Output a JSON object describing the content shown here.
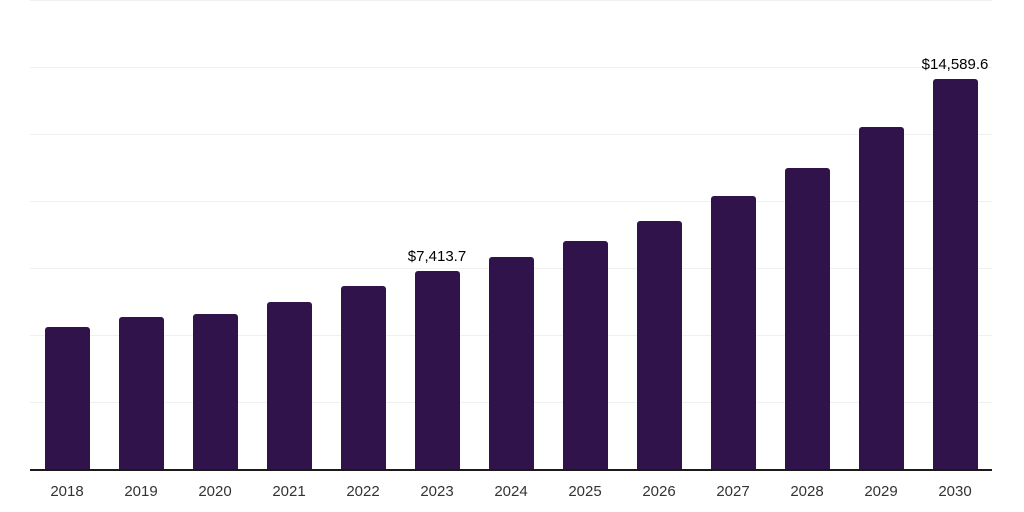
{
  "chart_data": {
    "type": "bar",
    "title": "",
    "xlabel": "",
    "ylabel": "",
    "categories": [
      "2018",
      "2019",
      "2020",
      "2021",
      "2022",
      "2023",
      "2024",
      "2025",
      "2026",
      "2027",
      "2028",
      "2029",
      "2030"
    ],
    "values": [
      5340,
      5710,
      5820,
      6270,
      6860,
      7413.7,
      7935,
      8530,
      9305,
      10230,
      11270,
      12790,
      14589.6
    ],
    "data_labels": {
      "2023": "$7,413.7",
      "2030": "$14,589.6"
    },
    "ylim": [
      0,
      17530
    ],
    "gridline_step": 2500,
    "grid": true,
    "legend_position": "none",
    "y_tick_labels_visible": false,
    "colors": {
      "bar": "#31134B",
      "axis": "#1a1a1a",
      "gridline": "#f0f0f0",
      "data_label": "#000000",
      "tick_label": "#333333"
    }
  }
}
